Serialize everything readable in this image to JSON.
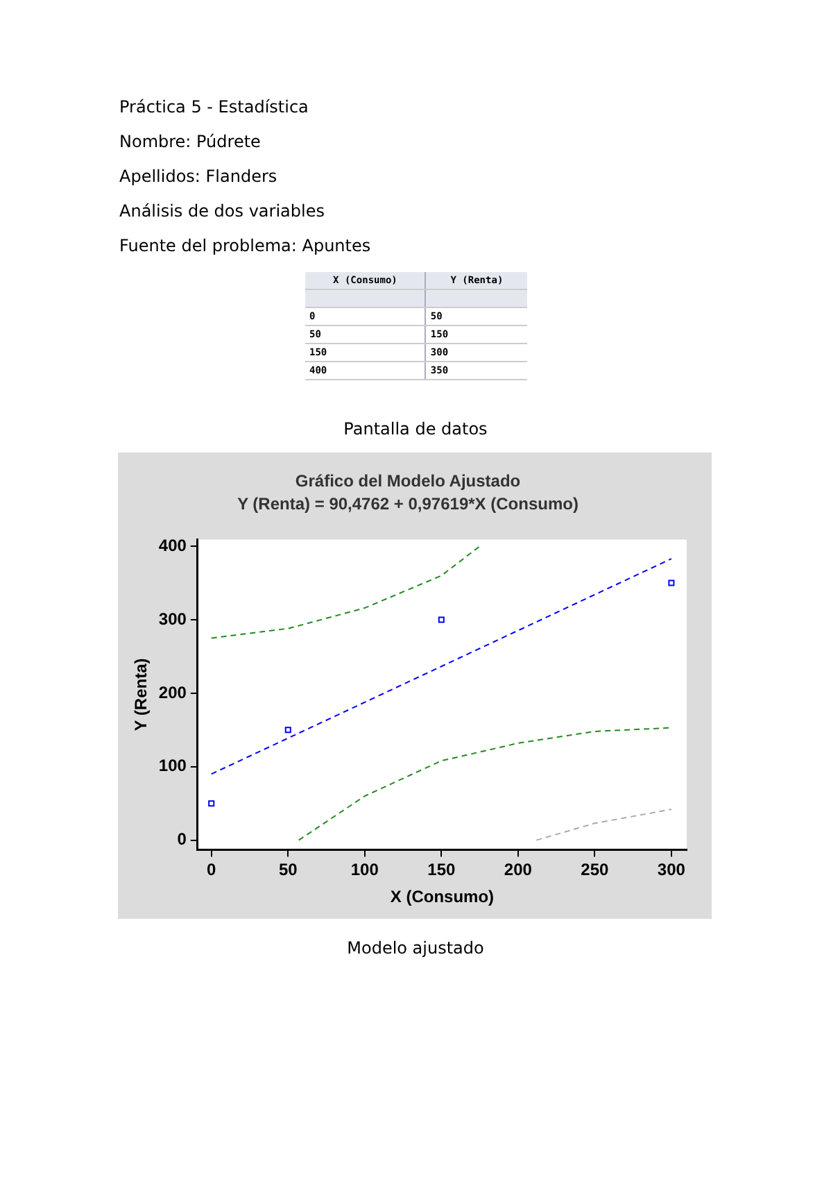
{
  "chart_data": {
    "type": "scatter",
    "title": "Gráfico del Modelo Ajustado",
    "subtitle": "Y (Renta) = 90,4762 + 0,97619*X (Consumo)",
    "xlabel": "X (Consumo)",
    "ylabel": "Y (Renta)",
    "annotations": [
      "Práctica 5 - Estadística",
      "Nombre: Púdrete",
      "Apellidos: Flanders",
      "Análisis de dos variables",
      "Fuente del problema: Apuntes",
      "0",
      "50",
      "50",
      "150",
      "150",
      "300",
      "400",
      "350",
      "Pantalla de datos",
      "Modelo ajustado"
    ],
    "series": [
      {
        "color": "#0000ff",
        "marker": "square",
        "x": [
          0,
          50,
          150,
          300
        ],
        "values": [
          50,
          150,
          300,
          350
        ]
      },
      {
        "type": "line",
        "color": "#0000ff",
        "line_style": "dashed",
        "x": [
          0,
          300
        ],
        "values": [
          90,
          383
        ]
      },
      {
        "type": "line",
        "color": "#228b22",
        "line_style": "dashed",
        "x": [
          0,
          50,
          100,
          150,
          175
        ],
        "values": [
          275,
          288,
          316,
          360,
          400
        ]
      },
      {
        "type": "line",
        "color": "#228b22",
        "line_style": "dashed",
        "x": [
          57,
          100,
          150,
          200,
          250,
          300
        ],
        "values": [
          0,
          60,
          108,
          132,
          148,
          153
        ]
      },
      {
        "type": "line",
        "color": "#aaaaaa",
        "line_style": "dashed",
        "x": [
          212,
          250,
          300
        ],
        "values": [
          0,
          23,
          42
        ]
      }
    ],
    "xlim": [
      -9,
      310
    ],
    "xticks": [
      0,
      50,
      100,
      150,
      200,
      250,
      300
    ],
    "ylim": [
      -13,
      409
    ],
    "yticks": [
      0,
      100,
      200,
      300,
      400
    ],
    "legend": false
  }
}
